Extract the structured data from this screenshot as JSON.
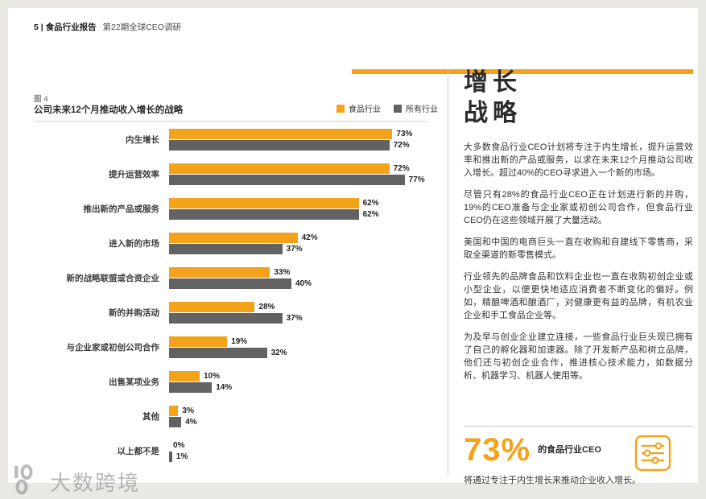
{
  "theme": {
    "accent": "#F5A21B",
    "bar_gray": "#626262"
  },
  "header": {
    "page_info": "5 | 食品行业报告",
    "subtitle": "第22期全球CEO调研"
  },
  "chart": {
    "figure_label": "图 4",
    "title": "公司未来12个月推动收入增长的战略",
    "legend": [
      {
        "label": "食品行业",
        "color": "#F5A21B"
      },
      {
        "label": "所有行业",
        "color": "#626262"
      }
    ],
    "chart_data": {
      "type": "bar",
      "orientation": "horizontal",
      "categories": [
        "内生增长",
        "提升运营效率",
        "推出新的产品或服务",
        "进入新的市场",
        "新的战略联盟或合资企业",
        "新的并购活动",
        "与企业家或初创公司合作",
        "出售某项业务",
        "其他",
        "以上都不是"
      ],
      "series": [
        {
          "name": "食品行业",
          "color": "#F5A21B",
          "values": [
            73,
            72,
            62,
            42,
            33,
            28,
            19,
            10,
            3,
            0
          ]
        },
        {
          "name": "所有行业",
          "color": "#626262",
          "values": [
            72,
            77,
            62,
            37,
            40,
            37,
            32,
            14,
            4,
            1
          ]
        }
      ],
      "value_suffix": "%",
      "xlim": [
        0,
        80
      ],
      "grid": false,
      "legend_position": "top-right"
    }
  },
  "article": {
    "heading_line1": "增长",
    "heading_line2": "战略",
    "paragraphs": [
      "大多数食品行业CEO计划将专注于内生增长，提升运营效率和推出新的产品或服务，以求在未来12个月推动公司收入增长。超过40%的CEO寻求进入一个新的市场。",
      "尽管只有28%的食品行业CEO正在计划进行新的并购，19%的CEO准备与企业家或初创公司合作，但食品行业CEO仍在这些领域开展了大量活动。",
      "美国和中国的电商巨头一直在收购和自建线下零售商，采取全渠道的新零售模式。",
      "行业领先的品牌食品和饮料企业也一直在收购初创企业或小型企业，以便更快地适应消费者不断变化的偏好。例如，精酿啤酒和酿酒厂，对健康更有益的品牌，有机农业企业和手工食品企业等。",
      "为及早与创业企业建立连接，一些食品行业巨头现已拥有了自己的孵化器和加速器。除了开发新产品和树立品牌，他们还与初创企业合作，推进核心技术能力，如数据分析、机器学习、机器人使用等。"
    ],
    "stat": {
      "value": "73%",
      "label": "的食品行业CEO",
      "description": "将通过专注于内生增长来推动企业收入增长。"
    }
  },
  "watermark": {
    "text": "大数跨境"
  }
}
